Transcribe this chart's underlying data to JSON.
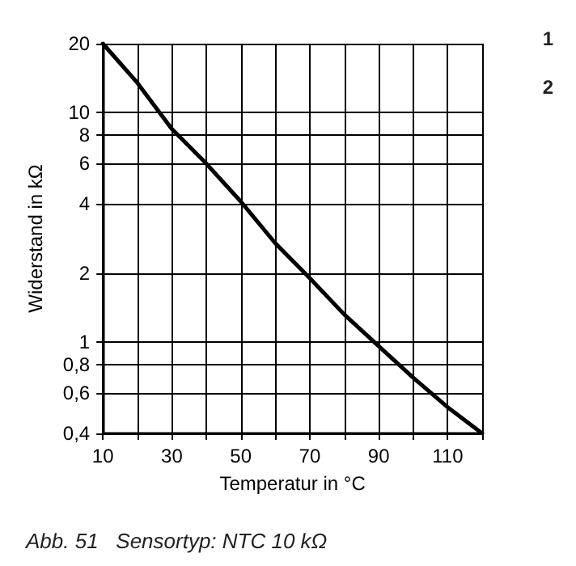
{
  "chart_data": {
    "type": "line",
    "xlabel": "Temperatur in °C",
    "ylabel": "Widerstand in kΩ",
    "x": [
      10,
      20,
      30,
      40,
      50,
      60,
      70,
      80,
      90,
      100,
      110,
      120
    ],
    "series": [
      {
        "color": "#000000",
        "values": [
          20,
          13.5,
          8.5,
          6,
          4.1,
          2.7,
          1.9,
          1.32,
          0.96,
          0.7,
          0.52,
          0.4
        ]
      }
    ],
    "xlim": [
      10,
      120
    ],
    "xticks": [
      10,
      {
        "value": 20,
        "label": null
      },
      30,
      {
        "value": 40,
        "label": null
      },
      50,
      {
        "value": 60,
        "label": null
      },
      70,
      {
        "value": 80,
        "label": null
      },
      90,
      {
        "value": 100,
        "label": null
      },
      110,
      {
        "value": 120,
        "label": null
      }
    ],
    "ylim": [
      0.4,
      20
    ],
    "yticks": [
      {
        "value": 0.4,
        "label": "0,4"
      },
      {
        "value": 0.6,
        "label": "0,6"
      },
      {
        "value": 0.8,
        "label": "0,8"
      },
      1,
      2,
      4,
      6,
      8,
      10,
      20
    ],
    "log": "y",
    "grid": true,
    "marker": "none",
    "line_style": "solid",
    "annotations": [
      "Abb. 51   Sensortyp: NTC 10 kΩ",
      "1",
      "2"
    ]
  }
}
